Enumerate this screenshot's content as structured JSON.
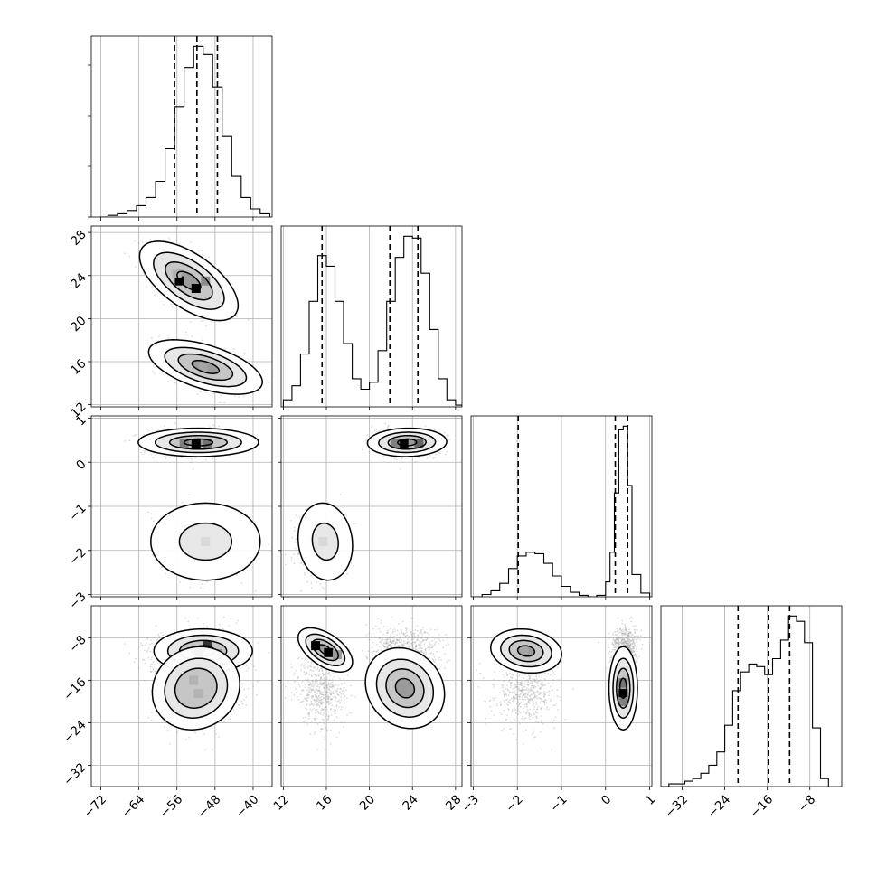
{
  "chart_data": {
    "type": "corner",
    "grid": true,
    "parameters": [
      {
        "range": [
          -74,
          -36
        ],
        "ticks": [
          -72,
          -64,
          -56,
          -48,
          -40
        ],
        "tick_labels": [
          "−72",
          "−64",
          "−56",
          "−48",
          "−40"
        ],
        "quantiles": [
          -56.5,
          -51.8,
          -47.5
        ]
      },
      {
        "range": [
          11.8,
          28.6
        ],
        "ticks": [
          12,
          16,
          20,
          24,
          28
        ],
        "tick_labels": [
          "12",
          "16",
          "20",
          "24",
          "28"
        ],
        "quantiles": [
          15.6,
          21.9,
          24.5
        ]
      },
      {
        "range": [
          -3.05,
          1.05
        ],
        "ticks": [
          -3,
          -2,
          -1,
          0,
          1
        ],
        "tick_labels": [
          "−3",
          "−2",
          "−1",
          "0",
          "1"
        ],
        "quantiles": [
          -1.98,
          0.22,
          0.5
        ]
      },
      {
        "range": [
          -36,
          -2
        ],
        "ticks": [
          -32,
          -24,
          -16,
          -8
        ],
        "tick_labels": [
          "−32",
          "−24",
          "−16",
          "−8"
        ],
        "quantiles": [
          -21.5,
          -15.8,
          -11.8
        ]
      }
    ],
    "histograms": [
      {
        "bins": [
          -72.5,
          -70.5,
          -68.5,
          -66.5,
          -64.5,
          -62.5,
          -60.5,
          -58.5,
          -56.5,
          -54.5,
          -52.5,
          -50.5,
          -48.5,
          -46.5,
          -44.5,
          -42.5,
          -40.5,
          -38.5,
          -36.5
        ],
        "counts": [
          0,
          1,
          2,
          4,
          7,
          12,
          22,
          42,
          68,
          92,
          105,
          100,
          80,
          50,
          25,
          12,
          5,
          2,
          0
        ]
      },
      {
        "bins": [
          12.0,
          12.8,
          13.6,
          14.4,
          15.2,
          16.0,
          16.8,
          17.6,
          18.4,
          19.2,
          20.0,
          20.8,
          21.6,
          22.4,
          23.2,
          24.0,
          24.8,
          25.6,
          26.4,
          27.2,
          28.0,
          28.6
        ],
        "counts": [
          4,
          12,
          30,
          60,
          86,
          80,
          60,
          36,
          16,
          10,
          14,
          32,
          60,
          85,
          97,
          96,
          76,
          44,
          16,
          4,
          1
        ]
      },
      {
        "bins": [
          -3.0,
          -2.8,
          -2.6,
          -2.4,
          -2.2,
          -2.0,
          -1.8,
          -1.6,
          -1.4,
          -1.2,
          -1.0,
          -0.8,
          -0.6,
          -0.4,
          -0.2,
          0.0,
          0.1,
          0.2,
          0.3,
          0.4,
          0.5,
          0.6,
          0.8,
          1.0
        ],
        "counts": [
          0,
          3,
          8,
          18,
          38,
          55,
          60,
          58,
          45,
          28,
          14,
          6,
          2,
          0,
          2,
          20,
          60,
          140,
          225,
          230,
          150,
          30,
          5
        ]
      },
      {
        "bins": [
          -36.0,
          -34.5,
          -33.0,
          -31.5,
          -30.0,
          -28.5,
          -27.0,
          -25.5,
          -24.0,
          -22.5,
          -21.0,
          -19.5,
          -18.0,
          -16.5,
          -15.0,
          -13.5,
          -12.0,
          -10.5,
          -9.0,
          -7.5,
          -6.0,
          -4.5
        ],
        "counts": [
          0,
          1,
          1,
          2,
          3,
          5,
          8,
          13,
          23,
          36,
          43,
          46,
          45,
          42,
          48,
          55,
          64,
          62,
          54,
          22,
          3
        ]
      }
    ],
    "clusters": [
      {
        "center": [
          -53.5,
          23.5,
          0.45,
          -10.0
        ],
        "sd": [
          4.5,
          1.6,
          0.15,
          2.2
        ]
      },
      {
        "center": [
          -50.0,
          15.5,
          -1.8,
          -18.0
        ],
        "sd": [
          4.5,
          1.1,
          0.35,
          3.4
        ]
      }
    ],
    "pairs": {
      "1-0": [
        {
          "cx": -53.5,
          "cy": 23.5,
          "sx": 4.5,
          "sy": 1.6,
          "rho": -0.62,
          "levels": [
            0.55,
            1.1,
            1.65,
            2.3
          ],
          "cells": [
            [
              -55.5,
              23.5,
              1.0
            ],
            [
              -52.0,
              22.8,
              1.0
            ],
            [
              -50.0,
              23.5,
              0.45
            ],
            [
              -56.0,
              24.2,
              0.3
            ]
          ]
        },
        {
          "cx": -50.0,
          "cy": 15.5,
          "sx": 5.2,
          "sy": 1.1,
          "rho": -0.55,
          "levels": [
            0.55,
            1.1,
            1.65,
            2.3
          ],
          "cells": [
            [
              -50.5,
              15.5,
              0.35
            ]
          ]
        }
      ],
      "2-0": [
        {
          "cx": -51.5,
          "cy": 0.45,
          "sx": 5.5,
          "sy": 0.14,
          "rho": 0.0,
          "levels": [
            0.55,
            1.1,
            1.65,
            2.3
          ],
          "cells": [
            [
              -52.0,
              0.42,
              1.0
            ],
            [
              -49.5,
              0.42,
              0.55
            ],
            [
              -54.5,
              0.42,
              0.5
            ]
          ]
        },
        {
          "cx": -50.0,
          "cy": -1.8,
          "sx": 5.0,
          "sy": 0.38,
          "rho": 0.0,
          "levels": [
            1.1,
            2.3
          ],
          "cells": [
            [
              -50.0,
              -1.8,
              0.15
            ]
          ]
        }
      ],
      "2-1": [
        {
          "cx": 23.5,
          "cy": 0.45,
          "sx": 1.6,
          "sy": 0.14,
          "rho": 0.05,
          "levels": [
            0.55,
            1.1,
            1.65,
            2.3
          ],
          "cells": [
            [
              23.2,
              0.42,
              1.0
            ],
            [
              24.6,
              0.42,
              0.6
            ],
            [
              22.4,
              0.42,
              0.5
            ]
          ]
        },
        {
          "cx": 15.9,
          "cy": -1.8,
          "sx": 1.1,
          "sy": 0.38,
          "rho": -0.1,
          "levels": [
            1.1,
            2.3
          ],
          "cells": [
            [
              15.7,
              -1.8,
              0.15
            ]
          ]
        }
      ],
      "3-0": [
        {
          "cx": -50.5,
          "cy": -10.5,
          "sx": 4.5,
          "sy": 1.8,
          "rho": 0.0,
          "levels": [
            0.55,
            1.1,
            1.65,
            2.3
          ],
          "cells": [
            [
              -51.5,
              -10.5,
              1.0
            ],
            [
              -49.5,
              -9.5,
              0.8
            ],
            [
              -47.5,
              -11.0,
              0.4
            ]
          ]
        },
        {
          "cx": -52.0,
          "cy": -17.5,
          "sx": 4.0,
          "sy": 3.4,
          "rho": 0.1,
          "levels": [
            1.1,
            1.65,
            2.3
          ],
          "cells": [
            [
              -51.5,
              -18.5,
              0.3
            ],
            [
              -52.5,
              -16.0,
              0.3
            ]
          ]
        }
      ],
      "3-1": [
        {
          "cx": 15.9,
          "cy": -10.3,
          "sx": 1.1,
          "sy": 1.8,
          "rho": -0.55,
          "levels": [
            0.55,
            1.1,
            1.65,
            2.3
          ],
          "cells": [
            [
              15.0,
              -9.5,
              1.0
            ],
            [
              16.2,
              -10.8,
              1.0
            ],
            [
              17.0,
              -11.2,
              0.4
            ]
          ]
        },
        {
          "cx": 23.3,
          "cy": -17.5,
          "sx": 1.6,
          "sy": 3.3,
          "rho": -0.15,
          "levels": [
            0.55,
            1.1,
            1.65,
            2.3
          ],
          "cells": [
            [
              23.0,
              -17.5,
              0.4
            ]
          ]
        }
      ],
      "3-2": [
        {
          "cx": -1.8,
          "cy": -10.5,
          "sx": 0.35,
          "sy": 1.8,
          "rho": -0.15,
          "levels": [
            0.55,
            1.1,
            1.65,
            2.3
          ],
          "cells": [
            [
              -1.85,
              -10.5,
              0.35
            ]
          ]
        },
        {
          "cx": 0.4,
          "cy": -17.5,
          "sx": 0.14,
          "sy": 3.4,
          "rho": 0.0,
          "levels": [
            0.55,
            1.1,
            1.65,
            2.3
          ],
          "cells": [
            [
              0.4,
              -18.5,
              1.0
            ],
            [
              0.4,
              -16.5,
              0.55
            ],
            [
              0.4,
              -20.0,
              0.5
            ]
          ]
        }
      ]
    }
  }
}
